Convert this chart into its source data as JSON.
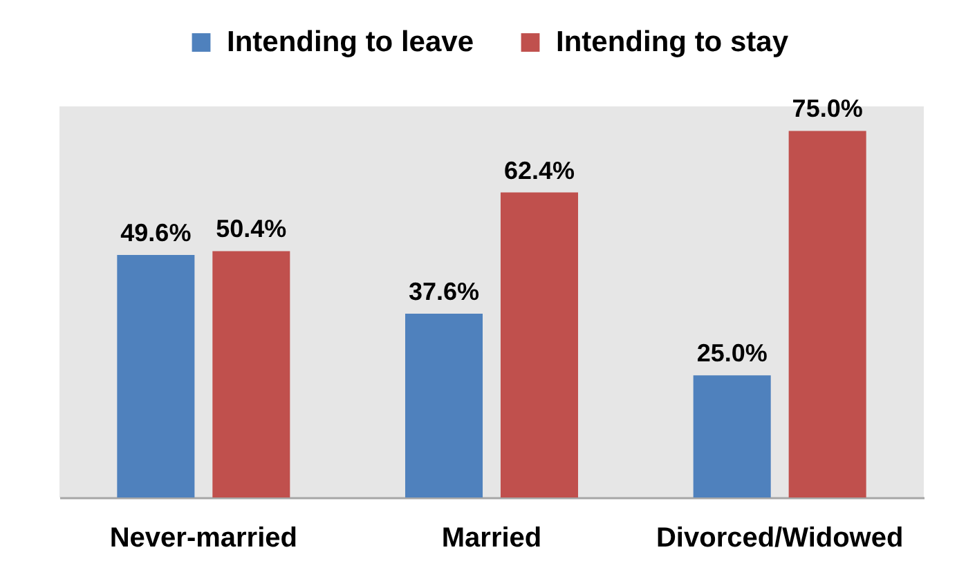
{
  "chart_data": {
    "type": "bar",
    "categories": [
      "Never-married",
      "Married",
      "Divorced/Widowed"
    ],
    "series": [
      {
        "name": "Intending to leave",
        "color": "#4f81bd",
        "values": [
          49.6,
          37.6,
          25.0
        ],
        "value_labels": [
          "49.6%",
          "37.6%",
          "25.0%"
        ]
      },
      {
        "name": "Intending to stay",
        "color": "#c0504d",
        "values": [
          50.4,
          62.4,
          75.0
        ],
        "value_labels": [
          "50.4%",
          "62.4%",
          "75.0%"
        ]
      }
    ],
    "ylim": [
      0,
      80
    ],
    "legend": "top",
    "tick_labels": "x"
  }
}
